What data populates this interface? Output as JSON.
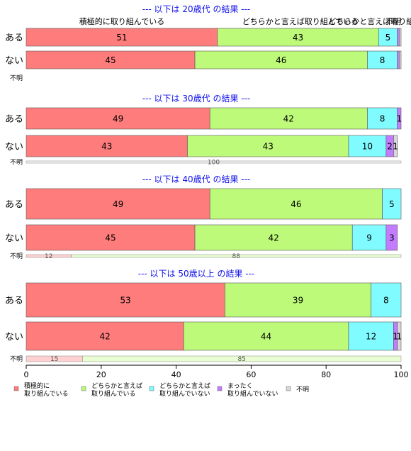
{
  "colors": {
    "積極的に取り組んでいる": "#ff7c7c",
    "どちらかと言えば取り組んでいる": "#bdfa7a",
    "どちらかと言えば取り組んでいない": "#80fbff",
    "まったく取り組んでいない": "#c37bff",
    "不明": "#d9d9d9",
    "title": "#1010ee"
  },
  "header_labels": [
    "積極的に取り組んでいる",
    "どちらかと言えば取り組んでいる",
    "どちらかと言えば取り組んでいない",
    "不明"
  ],
  "chart_data": {
    "type": "bar",
    "orientation": "horizontal",
    "stacked": true,
    "xlim": [
      0,
      100
    ],
    "x_ticks": [
      0,
      20,
      40,
      60,
      80,
      100
    ],
    "legend": {
      "placement": "bottom",
      "entries": [
        {
          "key": "積極的に取り組んでいる",
          "label": "積極的に\n取り組んでいる"
        },
        {
          "key": "どちらかと言えば取り組んでいる",
          "label": "どちらかと言えば\n取り組んでいる"
        },
        {
          "key": "どちらかと言えば取り組んでいない",
          "label": "どちらかと言えば\n取り組んでいない"
        },
        {
          "key": "まったく取り組んでいない",
          "label": "まったく\n取り組んでいない"
        },
        {
          "key": "不明",
          "label": "不明"
        }
      ]
    },
    "groups": [
      {
        "title": "--- 以下は 20歳代 の結果 ---",
        "rows": [
          {
            "label": "ある",
            "values": [
              51,
              43,
              5,
              0.5,
              0.5
            ],
            "labels": [
              "51",
              "43",
              "5",
              "",
              ""
            ]
          },
          {
            "label": "ない",
            "values": [
              45,
              46,
              8,
              0.5,
              0.5
            ],
            "labels": [
              "45",
              "46",
              "8",
              "",
              ""
            ]
          }
        ],
        "unknown": {
          "label": "不明",
          "values": [],
          "labels": []
        }
      },
      {
        "title": "--- 以下は 30歳代 の結果 ---",
        "rows": [
          {
            "label": "ある",
            "values": [
              49,
              42,
              8,
              1,
              0
            ],
            "labels": [
              "49",
              "42",
              "8",
              "1",
              ""
            ]
          },
          {
            "label": "ない",
            "values": [
              43,
              43,
              10,
              2,
              1
            ],
            "labels": [
              "43",
              "43",
              "10",
              "2",
              "1"
            ]
          }
        ],
        "unknown": {
          "label": "不明",
          "values": [
            0,
            0,
            0,
            0,
            100
          ],
          "labels": [
            "",
            "",
            "",
            "",
            "100"
          ]
        }
      },
      {
        "title": "--- 以下は 40歳代 の結果 ---",
        "rows": [
          {
            "label": "ある",
            "values": [
              49,
              46,
              5,
              0,
              0
            ],
            "labels": [
              "49",
              "46",
              "5",
              "",
              ""
            ]
          },
          {
            "label": "ない",
            "values": [
              45,
              42,
              9,
              3,
              0
            ],
            "labels": [
              "45",
              "42",
              "9",
              "3",
              ""
            ]
          }
        ],
        "unknown": {
          "label": "不明",
          "values": [
            12,
            88,
            0,
            0,
            0
          ],
          "labels": [
            "12",
            "88",
            "",
            "",
            ""
          ]
        }
      },
      {
        "title": "--- 以下は 50歳以上 の結果 ---",
        "rows": [
          {
            "label": "ある",
            "values": [
              53,
              39,
              8,
              0,
              0
            ],
            "labels": [
              "53",
              "39",
              "8",
              "",
              ""
            ]
          },
          {
            "label": "ない",
            "values": [
              42,
              44,
              12,
              1,
              1
            ],
            "labels": [
              "42",
              "44",
              "12",
              "1",
              "1"
            ]
          }
        ],
        "unknown": {
          "label": "不明",
          "values": [
            15,
            85,
            0,
            0,
            0
          ],
          "labels": [
            "15",
            "85",
            "",
            "",
            ""
          ]
        }
      }
    ]
  }
}
